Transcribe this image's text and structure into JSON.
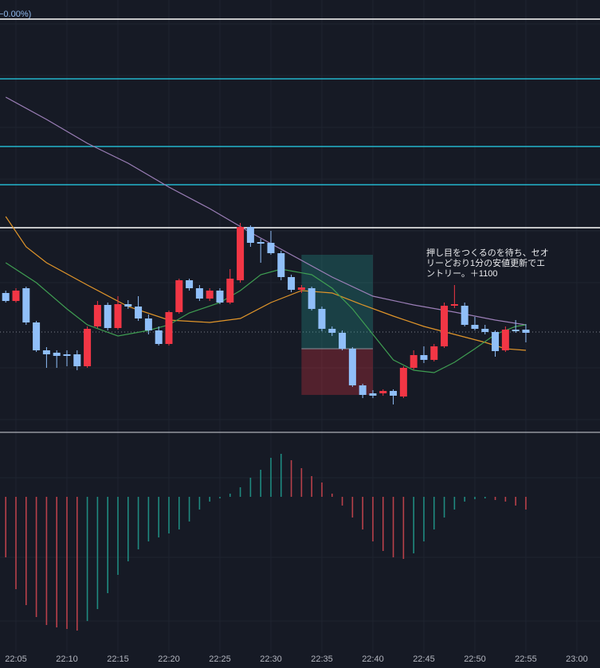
{
  "chart_data": [
    {
      "type": "candlestick",
      "label": "−0.00%)",
      "x": [
        4,
        5,
        6,
        7,
        8,
        9,
        10,
        11,
        12,
        13,
        14,
        15,
        16,
        17,
        18,
        19,
        20,
        21,
        22,
        23,
        24,
        25,
        26,
        27,
        28,
        29,
        30,
        31,
        32,
        33,
        34,
        35,
        36,
        37,
        38,
        39,
        40,
        41,
        42,
        43,
        44,
        45,
        46,
        47,
        48,
        49,
        50,
        51,
        52,
        53,
        54,
        55
      ],
      "open": [
        172,
        162,
        178,
        135,
        100,
        97,
        95,
        95,
        80,
        130,
        157,
        128,
        158,
        155,
        140,
        125,
        108,
        148,
        188,
        178,
        165,
        175,
        160,
        188,
        255,
        236,
        235,
        222,
        192,
        176,
        178,
        152,
        127,
        122,
        102,
        56,
        46,
        46,
        49,
        42,
        78,
        94,
        88,
        105,
        156,
        156,
        132,
        127,
        123,
        100,
        126,
        126
      ],
      "high": [
        175,
        178,
        180,
        137,
        104,
        100,
        100,
        100,
        130,
        162,
        160,
        168,
        163,
        168,
        145,
        130,
        150,
        190,
        190,
        182,
        178,
        178,
        202,
        260,
        257,
        240,
        250,
        225,
        195,
        182,
        180,
        155,
        130,
        125,
        104,
        58,
        50,
        51,
        51,
        80,
        100,
        105,
        108,
        160,
        182,
        160,
        142,
        132,
        125,
        130,
        138,
        133
      ],
      "low": [
        160,
        160,
        132,
        98,
        78,
        78,
        80,
        75,
        78,
        128,
        125,
        126,
        152,
        137,
        120,
        106,
        106,
        146,
        175,
        162,
        162,
        158,
        158,
        185,
        230,
        210,
        220,
        188,
        173,
        172,
        150,
        124,
        118,
        100,
        54,
        40,
        40,
        43,
        32,
        40,
        76,
        84,
        86,
        103,
        153,
        130,
        125,
        120,
        92,
        98,
        122,
        110
      ],
      "close": [
        162,
        175,
        135,
        100,
        95,
        93,
        93,
        80,
        127,
        157,
        128,
        158,
        155,
        140,
        125,
        108,
        148,
        188,
        178,
        165,
        175,
        160,
        190,
        255,
        235,
        234,
        222,
        192,
        176,
        179,
        152,
        127,
        122,
        102,
        56,
        44,
        43,
        49,
        43,
        78,
        94,
        88,
        105,
        156,
        158,
        132,
        127,
        123,
        99,
        126,
        124,
        122
      ],
      "up_color": "#f23645",
      "down_color": "#90bff9",
      "xlim": [
        3.4375,
        62.27
      ],
      "ylim": [
        0,
        540
      ],
      "lines": [
        {
          "color": "#9c7fb8",
          "x": [
            4,
            8,
            12,
            16,
            20,
            24,
            28,
            32,
            36,
            40,
            44,
            48,
            52,
            55
          ],
          "values": [
            418,
            390,
            360,
            335,
            305,
            278,
            248,
            220,
            192,
            168,
            157,
            148,
            138,
            132
          ]
        },
        {
          "color": "#e0952a",
          "x": [
            4,
            6,
            8,
            12,
            16,
            20,
            24,
            27,
            30,
            33,
            36,
            39,
            42,
            45,
            48,
            51,
            53,
            55
          ],
          "values": [
            268,
            230,
            210,
            182,
            155,
            138,
            135,
            140,
            160,
            175,
            172,
            157,
            143,
            130,
            120,
            110,
            102,
            100
          ]
        },
        {
          "color": "#3f9e52",
          "x": [
            4,
            7,
            10,
            12,
            15,
            18,
            20,
            22,
            25,
            27,
            29,
            31,
            34,
            36,
            38,
            40,
            42,
            44,
            46,
            48,
            50,
            52,
            54,
            55
          ],
          "values": [
            210,
            185,
            152,
            132,
            118,
            125,
            132,
            147,
            160,
            175,
            195,
            202,
            195,
            178,
            152,
            120,
            88,
            75,
            72,
            85,
            102,
            120,
            130,
            132
          ]
        }
      ],
      "hlines": [
        {
          "value": 516,
          "color": "#ffffff",
          "style": "solid"
        },
        {
          "value": 441,
          "color": "#22b5cc",
          "style": "solid"
        },
        {
          "value": 356,
          "color": "#22b5cc",
          "style": "solid"
        },
        {
          "value": 308,
          "color": "#22b5cc",
          "style": "solid"
        },
        {
          "value": 254,
          "color": "#ffffff",
          "style": "solid"
        },
        {
          "value": 123,
          "color": "#7c808c",
          "style": "dotted"
        }
      ],
      "position": {
        "x": [
          33,
          40
        ],
        "target": 220,
        "entry": 102,
        "stop": 44
      },
      "annotation": [
        "押し目をつくるのを待ち、セオ",
        "リーどおり1分の安値更新でエ",
        "ントリー。＋1100"
      ]
    },
    {
      "type": "histogram",
      "x": [
        4,
        5,
        6,
        7,
        8,
        9,
        10,
        11,
        12,
        13,
        14,
        15,
        16,
        17,
        18,
        19,
        20,
        21,
        22,
        23,
        24,
        25,
        26,
        27,
        28,
        29,
        30,
        31,
        32,
        33,
        34,
        35,
        36,
        37,
        38,
        39,
        40,
        41,
        42,
        43,
        44,
        45,
        46,
        47,
        48,
        49,
        50,
        51,
        52,
        53,
        54,
        55
      ],
      "values": [
        -76,
        -116,
        -136,
        -151,
        -161,
        -164,
        -166,
        -168,
        -156,
        -141,
        -121,
        -98,
        -81,
        -66,
        -56,
        -51,
        -46,
        -41,
        -31,
        -16,
        -6,
        -2,
        4,
        12,
        24,
        34,
        49,
        54,
        46,
        36,
        26,
        18,
        4,
        -11,
        -26,
        -41,
        -56,
        -68,
        -76,
        -78,
        -71,
        -56,
        -41,
        -26,
        -16,
        -6,
        -3,
        -2,
        -4,
        -6,
        -11,
        -16
      ],
      "rising_color": "#1f8a80",
      "falling_color": "#b8404a",
      "xlim": [
        3.4375,
        62.27
      ],
      "ylim": [
        -196,
        79
      ],
      "xticks": [
        {
          "value": 5,
          "label": "22:05"
        },
        {
          "value": 10,
          "label": "22:10"
        },
        {
          "value": 15,
          "label": "22:15"
        },
        {
          "value": 20,
          "label": "22:20"
        },
        {
          "value": 25,
          "label": "22:25"
        },
        {
          "value": 30,
          "label": "22:30"
        },
        {
          "value": 35,
          "label": "22:35"
        },
        {
          "value": 40,
          "label": "22:40"
        },
        {
          "value": 45,
          "label": "22:45"
        },
        {
          "value": 50,
          "label": "22:50"
        },
        {
          "value": 55,
          "label": "22:55"
        },
        {
          "value": 60,
          "label": "23:00"
        }
      ]
    }
  ]
}
